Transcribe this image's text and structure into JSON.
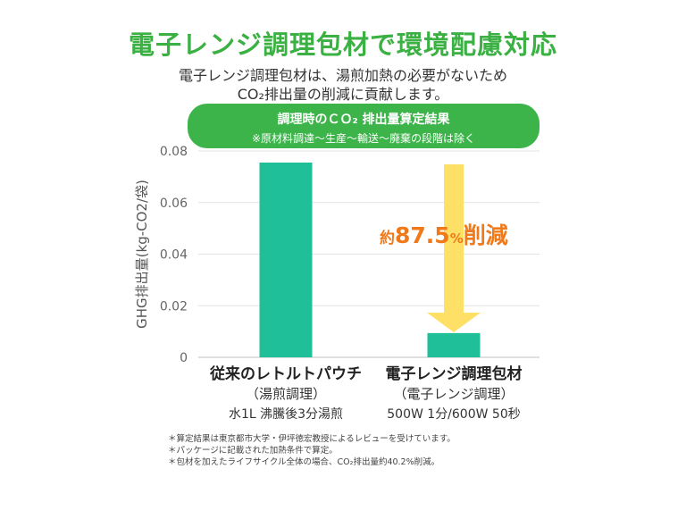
{
  "header": {
    "title": "電子レンジ調理包材で環境配慮対応",
    "subtitle_line1": "電子レンジ調理包材は、湯煎加熱の必要がないため",
    "subtitle_line2": "CO₂排出量の削減に貢献します。"
  },
  "banner": {
    "line1": "調理時のＣＯ₂ 排出量算定結果",
    "line2": "※原材料調達～生産～輸送～廃棄の段階は除く"
  },
  "chart_data": {
    "type": "bar",
    "ylabel": "GHG排出量(kg-CO2/袋)",
    "ylim": [
      0,
      0.08
    ],
    "yticks": [
      "0",
      "0.02",
      "0.04",
      "0.06",
      "0.08"
    ],
    "grid": true,
    "categories": [
      {
        "name": "従来のレトルトパウチ",
        "line2": "（湯煎調理）",
        "line3": "水1L 沸騰後3分湯煎",
        "value": 0.0755
      },
      {
        "name": "電子レンジ調理包材",
        "line2": "（電子レンジ調理）",
        "line3": "500W 1分/600W 50秒",
        "value": 0.0094
      }
    ],
    "bar_color": "#1fbf9a",
    "annotation": {
      "prefix": "約",
      "value": "87.5",
      "unit": "%",
      "suffix": "削減",
      "color": "#f07a1a"
    },
    "arrow_color": "#ffe066"
  },
  "notes": [
    "＊算定結果は東京都市大学・伊坪徳宏教授によるレビューを受けています。",
    "＊パッケージに記載された加熱条件で算定。",
    "＊包材を加えたライフサイクル全体の場合、CO₂排出量約40.2%削減。"
  ]
}
